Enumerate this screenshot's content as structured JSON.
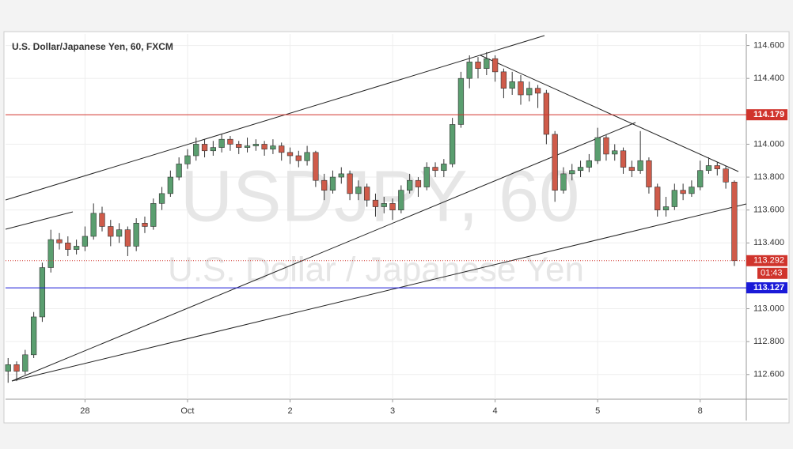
{
  "chart_data": {
    "type": "candlestick",
    "title": "U.S. Dollar/Japanese Yen, 60, FXCM",
    "watermark": "USDJPY, 60",
    "watermark_subtitle": "U.S. Dollar / Japanese Yen",
    "up_color": "#5a9e6f",
    "down_color": "#cf5b4a",
    "x": [
      0,
      1,
      2,
      3,
      4,
      5,
      6,
      7,
      8,
      9,
      10,
      11,
      12,
      13,
      14,
      15,
      16,
      17,
      18,
      19,
      20,
      21,
      22,
      23,
      24,
      25,
      26,
      27,
      28,
      29,
      30,
      31,
      32,
      33,
      34,
      35,
      36,
      37,
      38,
      39,
      40,
      41,
      42,
      43,
      44,
      45,
      46,
      47,
      48,
      49,
      50,
      51,
      52,
      53,
      54,
      55,
      56,
      57,
      58,
      59,
      60,
      61,
      62,
      63,
      64,
      65,
      66,
      67,
      68,
      69,
      70,
      71,
      72,
      73,
      74,
      75,
      76,
      77,
      78,
      79,
      80,
      81,
      82,
      83,
      84,
      85
    ],
    "open": [
      112.62,
      112.66,
      112.62,
      112.72,
      112.95,
      113.25,
      113.42,
      113.4,
      113.36,
      113.38,
      113.44,
      113.58,
      113.5,
      113.44,
      113.48,
      113.38,
      113.52,
      113.5,
      113.64,
      113.7,
      113.8,
      113.88,
      113.93,
      114.0,
      113.96,
      113.98,
      114.03,
      114.0,
      113.98,
      113.99,
      114.0,
      113.97,
      113.99,
      113.95,
      113.93,
      113.9,
      113.95,
      113.78,
      113.72,
      113.8,
      113.82,
      113.7,
      113.74,
      113.66,
      113.62,
      113.64,
      113.6,
      113.72,
      113.78,
      113.74,
      113.86,
      113.84,
      113.88,
      114.12,
      114.4,
      114.5,
      114.46,
      114.52,
      114.44,
      114.34,
      114.38,
      114.3,
      114.34,
      114.31,
      114.06,
      113.72,
      113.82,
      113.84,
      113.86,
      113.9,
      114.04,
      113.94,
      113.96,
      113.86,
      113.84,
      113.9,
      113.74,
      113.6,
      113.62,
      113.72,
      113.7,
      113.74,
      113.84,
      113.87,
      113.85,
      113.77
    ],
    "high": [
      112.7,
      112.68,
      112.75,
      112.98,
      113.28,
      113.48,
      113.46,
      113.44,
      113.42,
      113.5,
      113.64,
      113.62,
      113.54,
      113.52,
      113.5,
      113.55,
      113.56,
      113.67,
      113.74,
      113.84,
      113.92,
      113.97,
      114.04,
      114.03,
      114.02,
      114.06,
      114.05,
      114.02,
      114.04,
      114.03,
      114.02,
      114.03,
      114.01,
      113.98,
      113.96,
      113.99,
      113.96,
      113.82,
      113.84,
      113.86,
      113.84,
      113.78,
      113.76,
      113.7,
      113.68,
      113.67,
      113.75,
      113.82,
      113.8,
      113.89,
      113.89,
      113.91,
      114.16,
      114.44,
      114.54,
      114.53,
      114.56,
      114.54,
      114.46,
      114.44,
      114.42,
      114.38,
      114.36,
      114.33,
      114.08,
      113.86,
      113.88,
      113.9,
      113.94,
      114.1,
      114.06,
      114.0,
      113.98,
      113.9,
      114.08,
      113.92,
      113.76,
      113.68,
      113.76,
      113.76,
      113.78,
      113.9,
      113.92,
      113.89,
      113.87,
      113.78
    ],
    "low": [
      112.55,
      112.56,
      112.6,
      112.7,
      112.92,
      113.22,
      113.36,
      113.32,
      113.33,
      113.35,
      113.42,
      113.47,
      113.38,
      113.4,
      113.32,
      113.35,
      113.46,
      113.48,
      113.6,
      113.68,
      113.78,
      113.85,
      113.9,
      113.92,
      113.93,
      113.95,
      113.96,
      113.94,
      113.95,
      113.96,
      113.93,
      113.94,
      113.9,
      113.88,
      113.86,
      113.87,
      113.74,
      113.66,
      113.7,
      113.76,
      113.66,
      113.66,
      113.62,
      113.56,
      113.58,
      113.54,
      113.58,
      113.7,
      113.68,
      113.72,
      113.8,
      113.8,
      113.86,
      114.1,
      114.34,
      114.4,
      114.42,
      114.38,
      114.28,
      114.3,
      114.24,
      114.26,
      114.22,
      114.0,
      113.65,
      113.7,
      113.78,
      113.8,
      113.83,
      113.88,
      113.9,
      113.9,
      113.82,
      113.8,
      113.82,
      113.7,
      113.56,
      113.56,
      113.6,
      113.66,
      113.68,
      113.72,
      113.82,
      113.81,
      113.73,
      113.26
    ],
    "close": [
      112.66,
      112.62,
      112.72,
      112.95,
      113.25,
      113.42,
      113.4,
      113.36,
      113.38,
      113.44,
      113.58,
      113.5,
      113.44,
      113.48,
      113.38,
      113.52,
      113.5,
      113.64,
      113.7,
      113.8,
      113.88,
      113.93,
      114.0,
      113.96,
      113.98,
      114.03,
      114.0,
      113.98,
      113.99,
      114.0,
      113.97,
      113.99,
      113.95,
      113.93,
      113.9,
      113.95,
      113.78,
      113.72,
      113.8,
      113.82,
      113.7,
      113.74,
      113.66,
      113.62,
      113.64,
      113.6,
      113.72,
      113.78,
      113.74,
      113.86,
      113.84,
      113.88,
      114.12,
      114.4,
      114.5,
      114.46,
      114.52,
      114.44,
      114.34,
      114.38,
      114.3,
      114.34,
      114.31,
      114.06,
      113.72,
      113.82,
      113.84,
      113.86,
      113.9,
      114.04,
      113.94,
      113.96,
      113.86,
      113.84,
      113.9,
      113.74,
      113.6,
      113.62,
      113.72,
      113.7,
      113.74,
      113.84,
      113.87,
      113.85,
      113.77,
      113.292
    ],
    "xlim": [
      -0.3,
      86.4
    ],
    "ylim": [
      112.45,
      114.67
    ],
    "xticks": [
      {
        "value": 9,
        "label": "28"
      },
      {
        "value": 21,
        "label": "Oct"
      },
      {
        "value": 33,
        "label": "2"
      },
      {
        "value": 45,
        "label": "3"
      },
      {
        "value": 57,
        "label": "4"
      },
      {
        "value": 69,
        "label": "5"
      },
      {
        "value": 81,
        "label": "8"
      }
    ],
    "yticks": [
      {
        "value": 114.6,
        "label": "114.600"
      },
      {
        "value": 114.4,
        "label": "114.400"
      },
      {
        "value": 114,
        "label": "114.000"
      },
      {
        "value": 113.8,
        "label": "113.800"
      },
      {
        "value": 113.6,
        "label": "113.600"
      },
      {
        "value": 113.4,
        "label": "113.400"
      },
      {
        "value": 113,
        "label": "113.000"
      },
      {
        "value": 112.8,
        "label": "112.800"
      },
      {
        "value": 112.6,
        "label": "112.600"
      }
    ],
    "grid": true,
    "levels": [
      {
        "value": 114.179,
        "color": "#d0342c"
      },
      {
        "value": 113.127,
        "color": "#1a1ad8"
      }
    ],
    "last_price": 113.292,
    "last_price_color": "#d0342c",
    "countdown": "01:43"
  }
}
